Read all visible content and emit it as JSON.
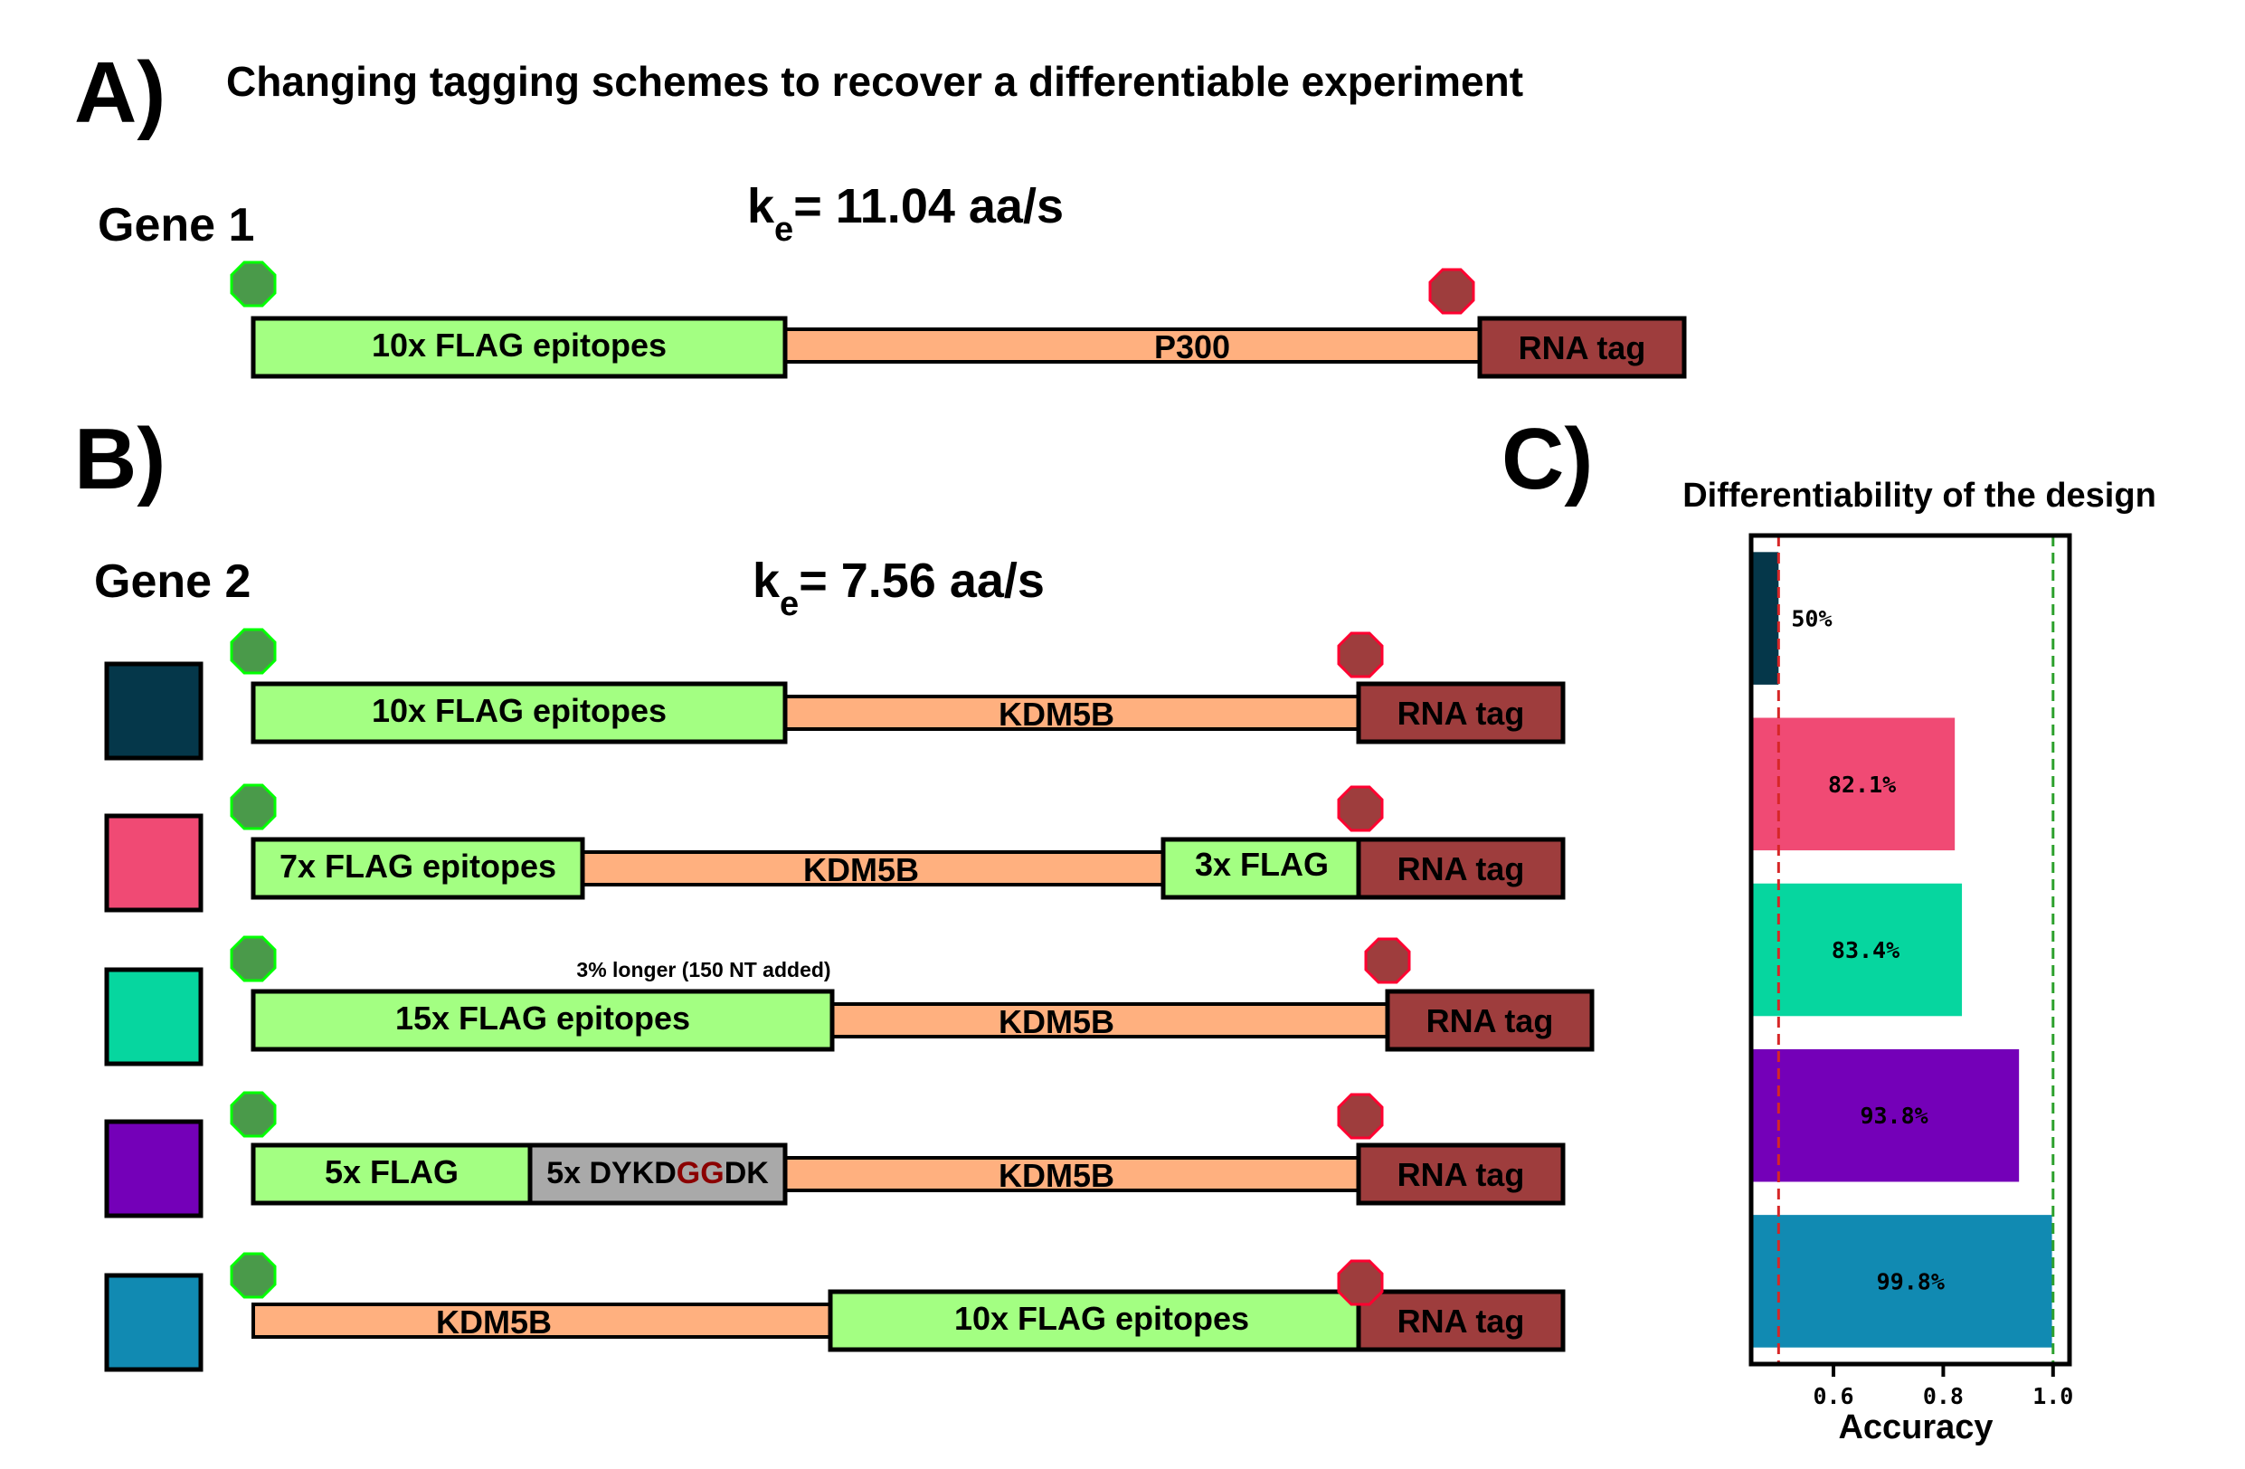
{
  "panel_a": {
    "letter": "A)",
    "title": "Changing tagging schemes to recover a differentiable experiment",
    "gene_label": "Gene 1",
    "rate_k": "k",
    "rate_sub": "e",
    "rate_value": "= 11.04 aa/s",
    "construct": {
      "epitopes": "10x FLAG epitopes",
      "gene": "P300",
      "rna_tag": "RNA tag"
    }
  },
  "panel_b": {
    "letter": "B)",
    "gene_label": "Gene 2",
    "rate_k": "k",
    "rate_sub": "e",
    "rate_value": "= 7.56 aa/s",
    "constructs": [
      {
        "color": "#05374a",
        "epitopes": "10x FLAG epitopes",
        "gene": "KDM5B",
        "rna_tag": "RNA tag"
      },
      {
        "color": "#f04a74",
        "epitopes": "7x FLAG epitopes",
        "gene": "KDM5B",
        "extra": "3x FLAG",
        "rna_tag": "RNA tag"
      },
      {
        "color": "#06d69f",
        "epitopes": "15x FLAG epitopes",
        "gene": "KDM5B",
        "rna_tag": "RNA tag",
        "note": "3% longer (150 NT added)"
      },
      {
        "color": "#7400b8",
        "epitopes": "5x FLAG",
        "mutant_prefix": "5x DYKD",
        "mutant_highlight": "GG",
        "mutant_suffix": "DK",
        "gene": "KDM5B",
        "rna_tag": "RNA tag"
      },
      {
        "color": "#118ab2",
        "gene": "KDM5B",
        "epitopes": "10x FLAG epitopes",
        "rna_tag": "RNA tag"
      }
    ]
  },
  "panel_c": {
    "letter": "C)",
    "chart_data": {
      "type": "bar",
      "orientation": "horizontal",
      "title": "Differentiability of the design",
      "xlabel": "Accuracy",
      "ylabel": "",
      "xlim": [
        0.45,
        1.03
      ],
      "xticks": [
        0.6,
        0.8,
        1.0
      ],
      "xtick_labels": [
        "0.6",
        "0.8",
        "1.0"
      ],
      "values": [
        0.5,
        0.821,
        0.834,
        0.938,
        0.998
      ],
      "value_labels": [
        "50%",
        "82.1%",
        "83.4%",
        "93.8%",
        "99.8%"
      ],
      "colors": [
        "#05374a",
        "#f04a74",
        "#06d69f",
        "#7400b8",
        "#118ab2"
      ],
      "reference_lines": [
        {
          "value": 0.5,
          "color": "#d62728",
          "style": "dashed"
        },
        {
          "value": 1.0,
          "color": "#2ca02c",
          "style": "dashed"
        }
      ],
      "grid": false
    }
  },
  "colors": {
    "epitope_green": "#a3ff82",
    "gene_orange": "#ffb07f",
    "rna_tag_red": "#9e3d3d",
    "mutant_grey": "#a9a9a9",
    "start_marker": "#4a9a4a",
    "start_marker_edge": "#00ff00",
    "stop_marker": "#9e3d3d",
    "stop_marker_edge": "#ff0030",
    "highlight_red": "#8b0000"
  }
}
